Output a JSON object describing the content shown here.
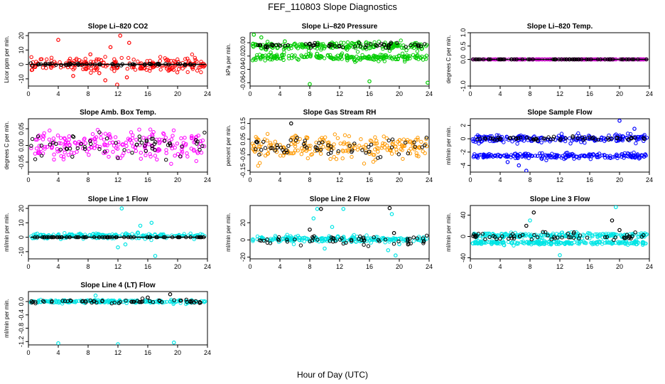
{
  "figure": {
    "title": "FEF_110803  Slope Diagnostics",
    "xlabel": "Hour of Day (UTC)"
  },
  "chart_data": [
    {
      "type": "scatter",
      "title": "Slope Li–820 CO2",
      "ylabel": "Licor ppm per min.",
      "xlim": [
        0,
        24
      ],
      "ylim": [
        -15,
        22
      ],
      "xticks": [
        "0",
        "4",
        "8",
        "12",
        "16",
        "20",
        "24"
      ],
      "yticks": [
        "-10",
        "0",
        "10",
        "20"
      ],
      "yticks_values": [
        -10,
        0,
        10,
        20
      ],
      "series": [
        {
          "color": "#ff0000",
          "center": 0,
          "spread": 4,
          "points": [
            [
              4,
              17
            ],
            [
              12.3,
              20
            ],
            [
              6,
              -8
            ],
            [
              10.3,
              -11
            ],
            [
              11.9,
              -14
            ],
            [
              13.2,
              -9
            ],
            [
              8.3,
              7
            ],
            [
              11,
              12
            ],
            [
              13.5,
              15
            ],
            [
              9.5,
              -6
            ]
          ]
        },
        {
          "color": "#000000",
          "center": 0,
          "spread": 0.5,
          "points": []
        }
      ]
    },
    {
      "type": "scatter",
      "title": "Slope Li–820 Pressure",
      "ylabel": "kPa per min.",
      "xlim": [
        0,
        24
      ],
      "ylim": [
        -0.065,
        0.015
      ],
      "xticks": [
        "0",
        "4",
        "8",
        "12",
        "16",
        "20",
        "24"
      ],
      "yticks": [
        "-0.06",
        "-0.04",
        "-0.02",
        "0.00"
      ],
      "yticks_values": [
        -0.06,
        -0.04,
        -0.02,
        0.0
      ],
      "series": [
        {
          "color": "#00cc00",
          "center": -0.005,
          "spread": 0.005,
          "points": [
            [
              8,
              -0.062
            ],
            [
              16,
              -0.058
            ],
            [
              23.8,
              -0.06
            ],
            [
              0.5,
              0.012
            ],
            [
              1.5,
              0.008
            ]
          ]
        },
        {
          "color": "#00cc00",
          "center": -0.022,
          "spread": 0.004,
          "points": []
        },
        {
          "color": "#000000",
          "center": -0.004,
          "spread": 0.003,
          "points": []
        }
      ]
    },
    {
      "type": "scatter",
      "title": "Slope Li–820 Temp.",
      "ylabel": "degrees C per min.",
      "xlim": [
        0,
        24
      ],
      "ylim": [
        -1,
        1
      ],
      "xticks": [
        "0",
        "4",
        "8",
        "12",
        "16",
        "20",
        "24"
      ],
      "yticks": [
        "-1.0",
        "0.0",
        "0.5",
        "1.0"
      ],
      "yticks_values": [
        -1.0,
        0.0,
        0.5,
        1.0
      ],
      "series": [
        {
          "color": "#cc00cc",
          "center": 0,
          "spread": 0,
          "points": []
        },
        {
          "color": "#000000",
          "center": 0,
          "spread": 0,
          "points": []
        }
      ]
    },
    {
      "type": "scatter",
      "title": "Slope Amb. Box Temp.",
      "ylabel": "degrees C per min.",
      "xlim": [
        0,
        24
      ],
      "ylim": [
        -0.08,
        0.08
      ],
      "xticks": [
        "0",
        "4",
        "8",
        "12",
        "16",
        "20",
        "24"
      ],
      "yticks": [
        "-0.05",
        "0.00",
        "0.05"
      ],
      "yticks_values": [
        -0.05,
        0.0,
        0.05
      ],
      "series": [
        {
          "color": "#ff00ff",
          "center": 0,
          "spread": 0.035,
          "points": []
        },
        {
          "color": "#000000",
          "center": 0,
          "spread": 0.03,
          "points": []
        }
      ]
    },
    {
      "type": "scatter",
      "title": "Slope Gas Stream RH",
      "ylabel": "percent per min.",
      "xlim": [
        0,
        24
      ],
      "ylim": [
        -0.16,
        0.18
      ],
      "xticks": [
        "0",
        "4",
        "8",
        "12",
        "16",
        "20",
        "24"
      ],
      "yticks": [
        "-0.15",
        "-0.05",
        "0.05",
        "0.15"
      ],
      "yticks_values": [
        -0.15,
        -0.05,
        0.05,
        0.15
      ],
      "series": [
        {
          "color": "#ff9900",
          "center": 0,
          "spread": 0.06,
          "points": []
        },
        {
          "color": "#000000",
          "center": 0,
          "spread": 0.05,
          "points": [
            [
              5.5,
              0.15
            ]
          ]
        }
      ]
    },
    {
      "type": "scatter",
      "title": "Slope Sample Flow",
      "ylabel": "ml/min per min.",
      "xlim": [
        0,
        24
      ],
      "ylim": [
        -5,
        3
      ],
      "xticks": [
        "0",
        "4",
        "8",
        "12",
        "16",
        "20",
        "24"
      ],
      "yticks": [
        "-4",
        "-2",
        "0",
        "2"
      ],
      "yticks_values": [
        -4,
        -2,
        0,
        2
      ],
      "series": [
        {
          "color": "#0000ff",
          "center": 0,
          "spread": 0.5,
          "points": [
            [
              7.5,
              -4.8
            ],
            [
              20,
              2.7
            ],
            [
              5,
              -3.5
            ],
            [
              6.5,
              -4
            ],
            [
              22,
              1.5
            ]
          ]
        },
        {
          "color": "#0000ff",
          "center": -2.6,
          "spread": 0.35,
          "points": []
        },
        {
          "color": "#000000",
          "center": 0,
          "spread": 0.2,
          "points": []
        }
      ]
    },
    {
      "type": "scatter",
      "title": "Slope Line 1 Flow",
      "ylabel": "ml/min per min.",
      "xlim": [
        0,
        24
      ],
      "ylim": [
        -15,
        22
      ],
      "xticks": [
        "0",
        "4",
        "8",
        "12",
        "16",
        "20",
        "24"
      ],
      "yticks": [
        "-10",
        "0",
        "10",
        "20"
      ],
      "yticks_values": [
        -10,
        0,
        10,
        20
      ],
      "series": [
        {
          "color": "#00e5e5",
          "center": 1,
          "spread": 1.5,
          "points": [
            [
              12.5,
              20
            ],
            [
              13,
              -5
            ],
            [
              16.5,
              10
            ],
            [
              17,
              -13
            ],
            [
              15,
              8
            ],
            [
              12,
              -7
            ]
          ]
        },
        {
          "color": "#000000",
          "center": 0,
          "spread": 0,
          "points": []
        }
      ]
    },
    {
      "type": "scatter",
      "title": "Slope Line 2 Flow",
      "ylabel": "ml/min per min.",
      "xlim": [
        0,
        24
      ],
      "ylim": [
        -22,
        40
      ],
      "xticks": [
        "0",
        "4",
        "8",
        "12",
        "16",
        "20",
        "24"
      ],
      "yticks": [
        "-20",
        "0",
        "20"
      ],
      "yticks_values": [
        -20,
        0,
        20
      ],
      "series": [
        {
          "color": "#00e5e5",
          "center": 1,
          "spread": 3,
          "points": [
            [
              9,
              36
            ],
            [
              8.5,
              25
            ],
            [
              12.5,
              36
            ],
            [
              19,
              30
            ],
            [
              19.5,
              -18
            ],
            [
              10,
              -10
            ],
            [
              18.5,
              -12
            ],
            [
              20,
              -5
            ],
            [
              11,
              15
            ]
          ]
        },
        {
          "color": "#000000",
          "center": 0,
          "spread": 4,
          "points": [
            [
              9.5,
              36
            ],
            [
              18.7,
              37
            ],
            [
              8,
              12
            ],
            [
              19.3,
              8
            ]
          ]
        }
      ]
    },
    {
      "type": "scatter",
      "title": "Slope Line 3 Flow",
      "ylabel": "ml/min per min.",
      "xlim": [
        0,
        24
      ],
      "ylim": [
        -42,
        58
      ],
      "xticks": [
        "0",
        "4",
        "8",
        "12",
        "16",
        "20",
        "24"
      ],
      "yticks": [
        "-40",
        "0",
        "40"
      ],
      "yticks_values": [
        -40,
        0,
        40
      ],
      "series": [
        {
          "color": "#00e5e5",
          "center": -12,
          "spread": 3,
          "points": [
            [
              8,
              30
            ],
            [
              19.5,
              55
            ],
            [
              12,
              -35
            ]
          ]
        },
        {
          "color": "#00e5e5",
          "center": 2,
          "spread": 4,
          "points": []
        },
        {
          "color": "#000000",
          "center": 0,
          "spread": 6,
          "points": [
            [
              8.5,
              45
            ],
            [
              19,
              30
            ],
            [
              7.5,
              20
            ],
            [
              20,
              12
            ]
          ]
        }
      ]
    },
    {
      "type": "scatter",
      "title": "Slope Line 4 (LT) Flow",
      "ylabel": "ml/min per min.",
      "xlim": [
        0,
        24
      ],
      "ylim": [
        -1.3,
        0.3
      ],
      "xticks": [
        "0",
        "4",
        "8",
        "12",
        "16",
        "20",
        "24"
      ],
      "yticks": [
        "-1.2",
        "-0.8",
        "-0.4",
        "0.0"
      ],
      "yticks_values": [
        -1.2,
        -0.8,
        -0.4,
        0.0
      ],
      "series": [
        {
          "color": "#00e5e5",
          "center": 0,
          "spread": 0.04,
          "points": [
            [
              4,
              -1.25
            ],
            [
              12,
              -1.28
            ],
            [
              19.5,
              -1.23
            ],
            [
              9,
              0.18
            ]
          ]
        },
        {
          "color": "#000000",
          "center": 0,
          "spread": 0.04,
          "points": [
            [
              19,
              0.22
            ],
            [
              16,
              0.12
            ]
          ]
        }
      ]
    }
  ]
}
